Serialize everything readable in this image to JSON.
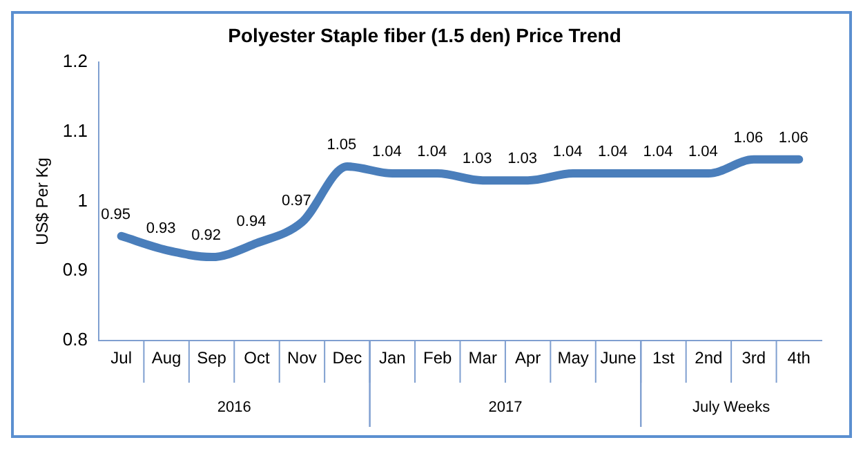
{
  "chart_data": {
    "type": "line",
    "title": "Polyester Staple fiber (1.5 den) Price Trend",
    "ylabel": "US$ Per Kg",
    "categories": [
      "Jul",
      "Aug",
      "Sep",
      "Oct",
      "Nov",
      "Dec",
      "Jan",
      "Feb",
      "Mar",
      "Apr",
      "May",
      "June",
      "1st",
      "2nd",
      "3rd",
      "4th"
    ],
    "series": [
      {
        "color": "#4a7ebb",
        "values": [
          0.95,
          0.93,
          0.92,
          0.94,
          0.97,
          1.05,
          1.04,
          1.04,
          1.03,
          1.03,
          1.04,
          1.04,
          1.04,
          1.04,
          1.06,
          1.06
        ]
      }
    ],
    "ylim": [
      0.8,
      1.2
    ],
    "yticks": [
      0.8,
      0.9,
      1,
      1.1,
      1.2
    ],
    "grid": false,
    "legend": false,
    "marker": "none",
    "line_style": "solid",
    "data_labels": true,
    "annotations": [
      "2016",
      "2017",
      "July Weeks"
    ]
  }
}
